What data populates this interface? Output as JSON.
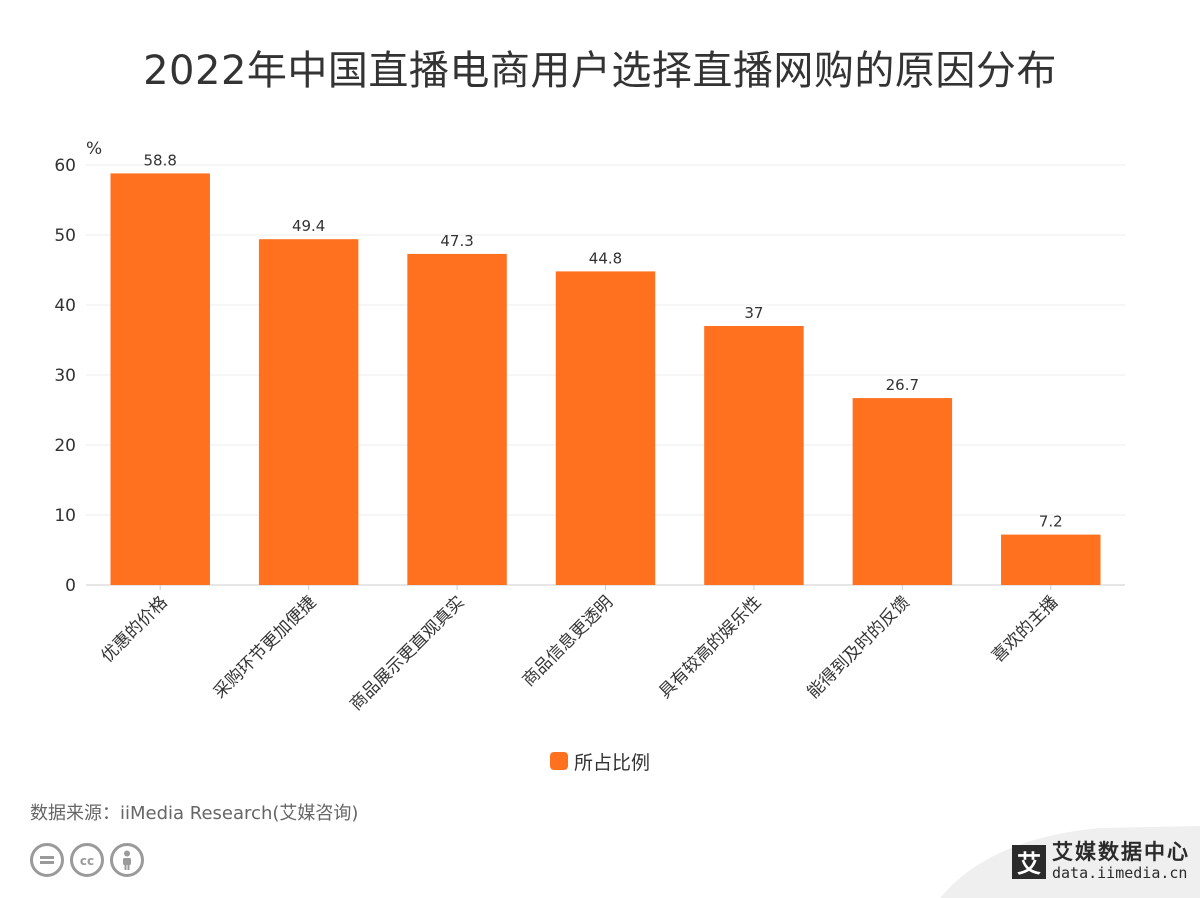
{
  "title": "2022年中国直播电商用户选择直播网购的原因分布",
  "unit": "%",
  "legend_label": "所占比例",
  "source": "数据来源：iiMedia Research(艾媒咨询)",
  "brand": {
    "name": "艾媒数据中心",
    "url": "data.iimedia.cn",
    "logo_char": "艾"
  },
  "license_icons": [
    "equals-icon",
    "cc-icon",
    "person-icon"
  ],
  "colors": {
    "bar": "#FF701F",
    "grid": "#EEEEEE",
    "axis": "#CCCCCC",
    "text": "#333333"
  },
  "chart_data": {
    "type": "bar",
    "title": "2022年中国直播电商用户选择直播网购的原因分布",
    "ylabel": "%",
    "ylim": [
      0,
      60
    ],
    "yticks": [
      0,
      10,
      20,
      30,
      40,
      50,
      60
    ],
    "categories": [
      "优惠的价格",
      "采购环节更加便捷",
      "商品展示更直观真实",
      "商品信息更透明",
      "具有较高的娱乐性",
      "能得到及时的反馈",
      "喜欢的主播"
    ],
    "series": [
      {
        "name": "所占比例",
        "values": [
          58.8,
          49.4,
          47.3,
          44.8,
          37,
          26.7,
          7.2
        ]
      }
    ],
    "grid": true,
    "legend_position": "bottom"
  }
}
